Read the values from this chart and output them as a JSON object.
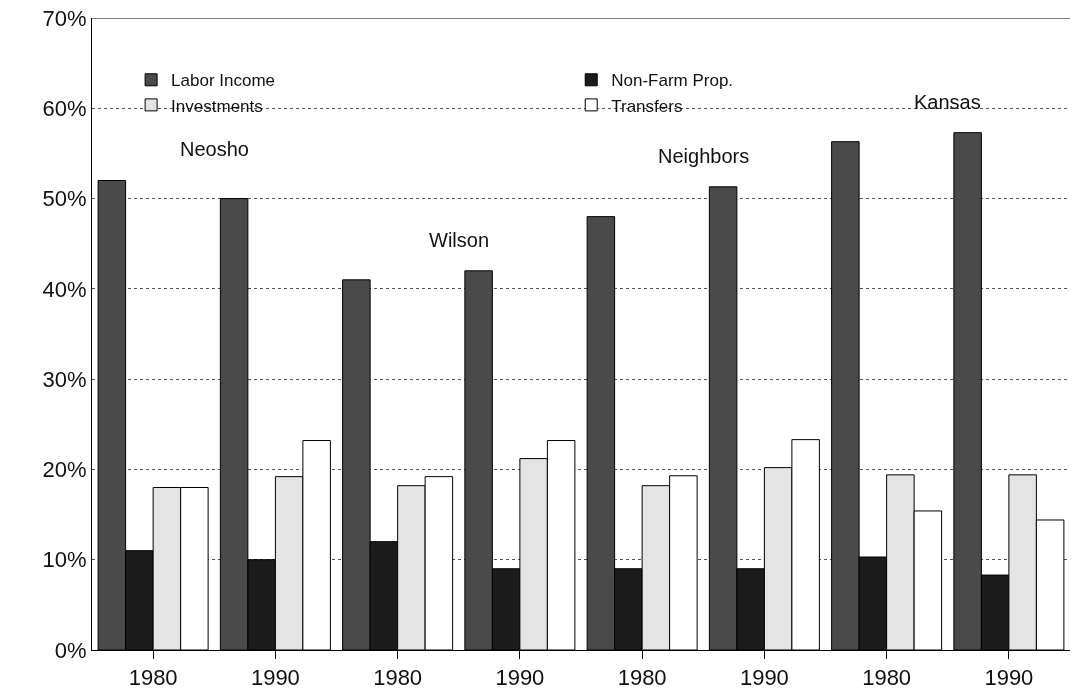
{
  "chart_data": {
    "type": "bar",
    "categories": [
      "1980",
      "1990",
      "1980",
      "1990",
      "1980",
      "1990",
      "1980",
      "1990"
    ],
    "series": [
      {
        "name": "Labor Income",
        "color": "#4a4a4a",
        "values": [
          52,
          50,
          41,
          42,
          48,
          51.3,
          56.3,
          57.3
        ]
      },
      {
        "name": "Non-Farm Prop.",
        "color": "#1c1c1c",
        "values": [
          11,
          10,
          12,
          9,
          9,
          9,
          10.3,
          8.3
        ]
      },
      {
        "name": "Investments",
        "color": "#e4e4e4",
        "values": [
          18,
          19.2,
          18.2,
          21.2,
          18.2,
          20.2,
          19.4,
          19.4
        ]
      },
      {
        "name": "Transfers",
        "color": "#ffffff",
        "values": [
          18,
          23.2,
          19.2,
          23.2,
          19.3,
          23.3,
          15.4,
          14.4
        ]
      }
    ],
    "annotations": [
      "Neosho",
      "Wilson",
      "Neighbors",
      "Kansas"
    ],
    "ylim": [
      0,
      70
    ],
    "yticks": [
      {
        "value": 0,
        "label": "0%"
      },
      {
        "value": 10,
        "label": "10%"
      },
      {
        "value": 20,
        "label": "20%"
      },
      {
        "value": 30,
        "label": "30%"
      },
      {
        "value": 40,
        "label": "40%"
      },
      {
        "value": 50,
        "label": "50%"
      },
      {
        "value": 60,
        "label": "60%"
      },
      {
        "value": 70,
        "label": "70%"
      }
    ],
    "grid": "y",
    "legend": "top"
  }
}
